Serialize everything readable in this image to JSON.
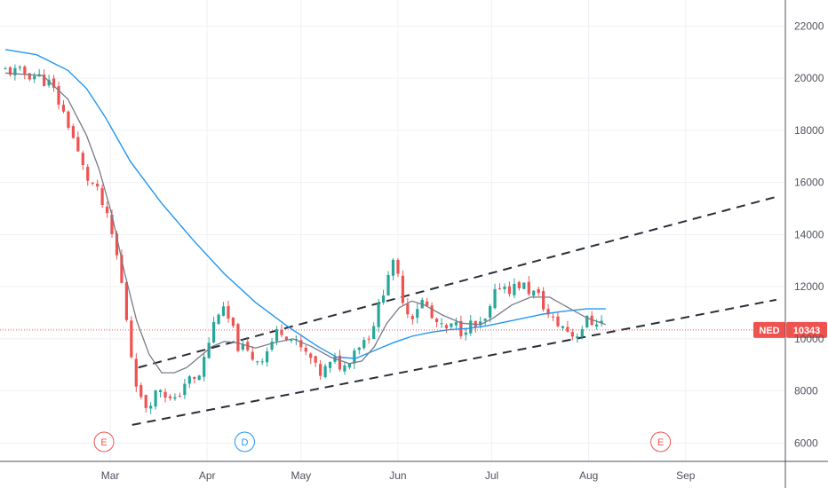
{
  "chart_data": {
    "type": "candlestick",
    "title": "",
    "xlabel": "",
    "ylabel": "",
    "ylim": [
      5300,
      23000
    ],
    "yticks": [
      6000,
      8000,
      10000,
      12000,
      14000,
      16000,
      18000,
      20000,
      22000
    ],
    "ytick_labels": [
      "6000",
      "8000",
      "10000",
      "12000",
      "14000",
      "16000",
      "18000",
      "20000",
      "22000"
    ],
    "xticks": [
      {
        "label": "Mar",
        "day": 29
      },
      {
        "label": "Apr",
        "day": 60
      },
      {
        "label": "May",
        "day": 90
      },
      {
        "label": "Jun",
        "day": 121
      },
      {
        "label": "Jul",
        "day": 151
      },
      {
        "label": "Aug",
        "day": 182
      },
      {
        "label": "Sep",
        "day": 213
      }
    ],
    "grid": true,
    "current_price": {
      "symbol": "NED",
      "value": "10343",
      "level": 10343,
      "color": "#ef5350"
    },
    "colors": {
      "up": "#26a69a",
      "down": "#ef5350",
      "ma_fast": "#787b86",
      "ma_slow": "#2196f3",
      "trend": "#2a2e39",
      "d_badge": "#2196f3",
      "e_badge": "#ef5350"
    },
    "events": [
      {
        "label": "E",
        "day": 27,
        "color": "#ef5350"
      },
      {
        "label": "D",
        "day": 72,
        "color": "#2196f3"
      },
      {
        "label": "E",
        "day": 205,
        "color": "#ef5350"
      }
    ],
    "trend_lines": [
      {
        "name": "",
        "points": [
          [
            36,
            6700
          ],
          [
            242,
            11500
          ]
        ]
      },
      {
        "name": "",
        "points": [
          [
            38,
            8900
          ],
          [
            242,
            15450
          ]
        ]
      }
    ],
    "keypoints": [
      [
        0,
        20300
      ],
      [
        5,
        20200
      ],
      [
        10,
        20100
      ],
      [
        14,
        19800
      ],
      [
        16,
        19400
      ],
      [
        18,
        18800
      ],
      [
        20,
        18300
      ],
      [
        22,
        17600
      ],
      [
        24,
        16800
      ],
      [
        26,
        16200
      ],
      [
        28,
        15900
      ],
      [
        30,
        15500
      ],
      [
        32,
        14800
      ],
      [
        34,
        14000
      ],
      [
        36,
        13000
      ],
      [
        38,
        11500
      ],
      [
        40,
        9600
      ],
      [
        42,
        8300
      ],
      [
        44,
        7300
      ],
      [
        46,
        7600
      ],
      [
        48,
        7900
      ],
      [
        50,
        8200
      ],
      [
        52,
        7700
      ],
      [
        54,
        7500
      ],
      [
        56,
        8000
      ],
      [
        58,
        8500
      ],
      [
        60,
        8300
      ],
      [
        62,
        8600
      ],
      [
        64,
        9400
      ],
      [
        66,
        10300
      ],
      [
        68,
        11100
      ],
      [
        70,
        11000
      ],
      [
        72,
        10600
      ],
      [
        74,
        9800
      ],
      [
        76,
        9600
      ],
      [
        78,
        9400
      ],
      [
        80,
        9200
      ],
      [
        82,
        9300
      ],
      [
        84,
        9600
      ],
      [
        86,
        10100
      ],
      [
        88,
        10400
      ],
      [
        90,
        10200
      ],
      [
        92,
        9900
      ],
      [
        94,
        9700
      ],
      [
        96,
        9400
      ],
      [
        98,
        9200
      ],
      [
        100,
        8600
      ],
      [
        102,
        8800
      ],
      [
        104,
        9000
      ],
      [
        106,
        9200
      ],
      [
        108,
        8800
      ],
      [
        110,
        9300
      ],
      [
        112,
        9700
      ],
      [
        114,
        9900
      ],
      [
        116,
        10100
      ],
      [
        118,
        10700
      ],
      [
        120,
        11400
      ],
      [
        122,
        12500
      ],
      [
        124,
        12800
      ],
      [
        126,
        12200
      ],
      [
        128,
        11100
      ],
      [
        130,
        10900
      ],
      [
        132,
        11300
      ],
      [
        134,
        11500
      ],
      [
        136,
        10800
      ],
      [
        138,
        10600
      ],
      [
        140,
        10300
      ],
      [
        142,
        10400
      ],
      [
        144,
        10500
      ],
      [
        146,
        10300
      ],
      [
        148,
        10600
      ],
      [
        150,
        10400
      ],
      [
        152,
        10500
      ],
      [
        154,
        10700
      ],
      [
        156,
        11500
      ],
      [
        158,
        12100
      ],
      [
        160,
        12000
      ],
      [
        162,
        11900
      ],
      [
        164,
        12100
      ],
      [
        166,
        12000
      ],
      [
        168,
        11800
      ],
      [
        170,
        11700
      ],
      [
        172,
        11300
      ],
      [
        174,
        10800
      ],
      [
        176,
        10600
      ],
      [
        178,
        10500
      ],
      [
        180,
        10300
      ],
      [
        182,
        10100
      ],
      [
        184,
        10400
      ],
      [
        186,
        10700
      ],
      [
        188,
        10600
      ],
      [
        190,
        10800
      ],
      [
        192,
        10343
      ]
    ],
    "ma_fast_points": [
      [
        0,
        20200
      ],
      [
        12,
        20100
      ],
      [
        20,
        19200
      ],
      [
        26,
        17800
      ],
      [
        30,
        16500
      ],
      [
        34,
        14800
      ],
      [
        38,
        12600
      ],
      [
        42,
        10700
      ],
      [
        46,
        9400
      ],
      [
        50,
        8700
      ],
      [
        54,
        8700
      ],
      [
        58,
        8900
      ],
      [
        62,
        9300
      ],
      [
        66,
        9700
      ],
      [
        70,
        9900
      ],
      [
        74,
        9850
      ],
      [
        80,
        9650
      ],
      [
        86,
        9850
      ],
      [
        92,
        10000
      ],
      [
        98,
        9700
      ],
      [
        104,
        9300
      ],
      [
        110,
        9050
      ],
      [
        114,
        9150
      ],
      [
        118,
        9700
      ],
      [
        122,
        10600
      ],
      [
        126,
        11200
      ],
      [
        130,
        11450
      ],
      [
        134,
        11300
      ],
      [
        140,
        10900
      ],
      [
        146,
        10600
      ],
      [
        152,
        10550
      ],
      [
        156,
        10800
      ],
      [
        162,
        11300
      ],
      [
        168,
        11600
      ],
      [
        174,
        11600
      ],
      [
        180,
        11200
      ],
      [
        186,
        10800
      ],
      [
        192,
        10550
      ]
    ],
    "ma_slow_points": [
      [
        0,
        21100
      ],
      [
        10,
        20900
      ],
      [
        20,
        20300
      ],
      [
        26,
        19600
      ],
      [
        32,
        18500
      ],
      [
        40,
        16800
      ],
      [
        50,
        15200
      ],
      [
        60,
        13800
      ],
      [
        70,
        12500
      ],
      [
        80,
        11400
      ],
      [
        90,
        10500
      ],
      [
        100,
        9700
      ],
      [
        106,
        9300
      ],
      [
        112,
        9250
      ],
      [
        118,
        9550
      ],
      [
        124,
        9850
      ],
      [
        130,
        10100
      ],
      [
        136,
        10250
      ],
      [
        142,
        10350
      ],
      [
        148,
        10400
      ],
      [
        154,
        10500
      ],
      [
        160,
        10650
      ],
      [
        166,
        10800
      ],
      [
        172,
        10950
      ],
      [
        178,
        11050
      ],
      [
        186,
        11150
      ],
      [
        192,
        11150
      ]
    ]
  }
}
